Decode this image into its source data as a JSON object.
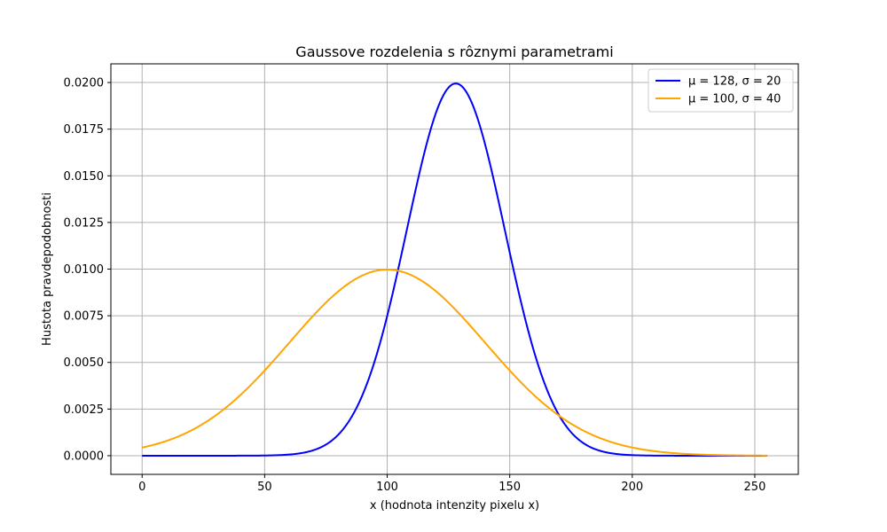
{
  "chart_data": {
    "type": "line",
    "title": "Gaussove rozdelenia s rôznymi parametrami",
    "xlabel": "x (hodnota intenzity pixelu x)",
    "ylabel": "Hustota pravdepodobnosti",
    "xlim": [
      -12.75,
      267.75
    ],
    "ylim": [
      -0.001,
      0.021
    ],
    "x_domain": [
      0,
      255
    ],
    "xticks": [
      0,
      50,
      100,
      150,
      200,
      250
    ],
    "yticks": [
      0.0,
      0.0025,
      0.005,
      0.0075,
      0.01,
      0.0125,
      0.015,
      0.0175,
      0.02
    ],
    "xtick_labels": [
      "0",
      "50",
      "100",
      "150",
      "200",
      "250"
    ],
    "ytick_labels": [
      "0.0000",
      "0.0025",
      "0.0050",
      "0.0075",
      "0.0100",
      "0.0125",
      "0.0150",
      "0.0175",
      "0.0200"
    ],
    "grid": true,
    "legend_position": "top-right",
    "series": [
      {
        "name": "μ = 128, σ = 20",
        "mu": 128,
        "sigma": 20,
        "color": "#0000ff"
      },
      {
        "name": "μ = 100, σ = 40",
        "mu": 100,
        "sigma": 40,
        "color": "#ffa500"
      }
    ]
  }
}
